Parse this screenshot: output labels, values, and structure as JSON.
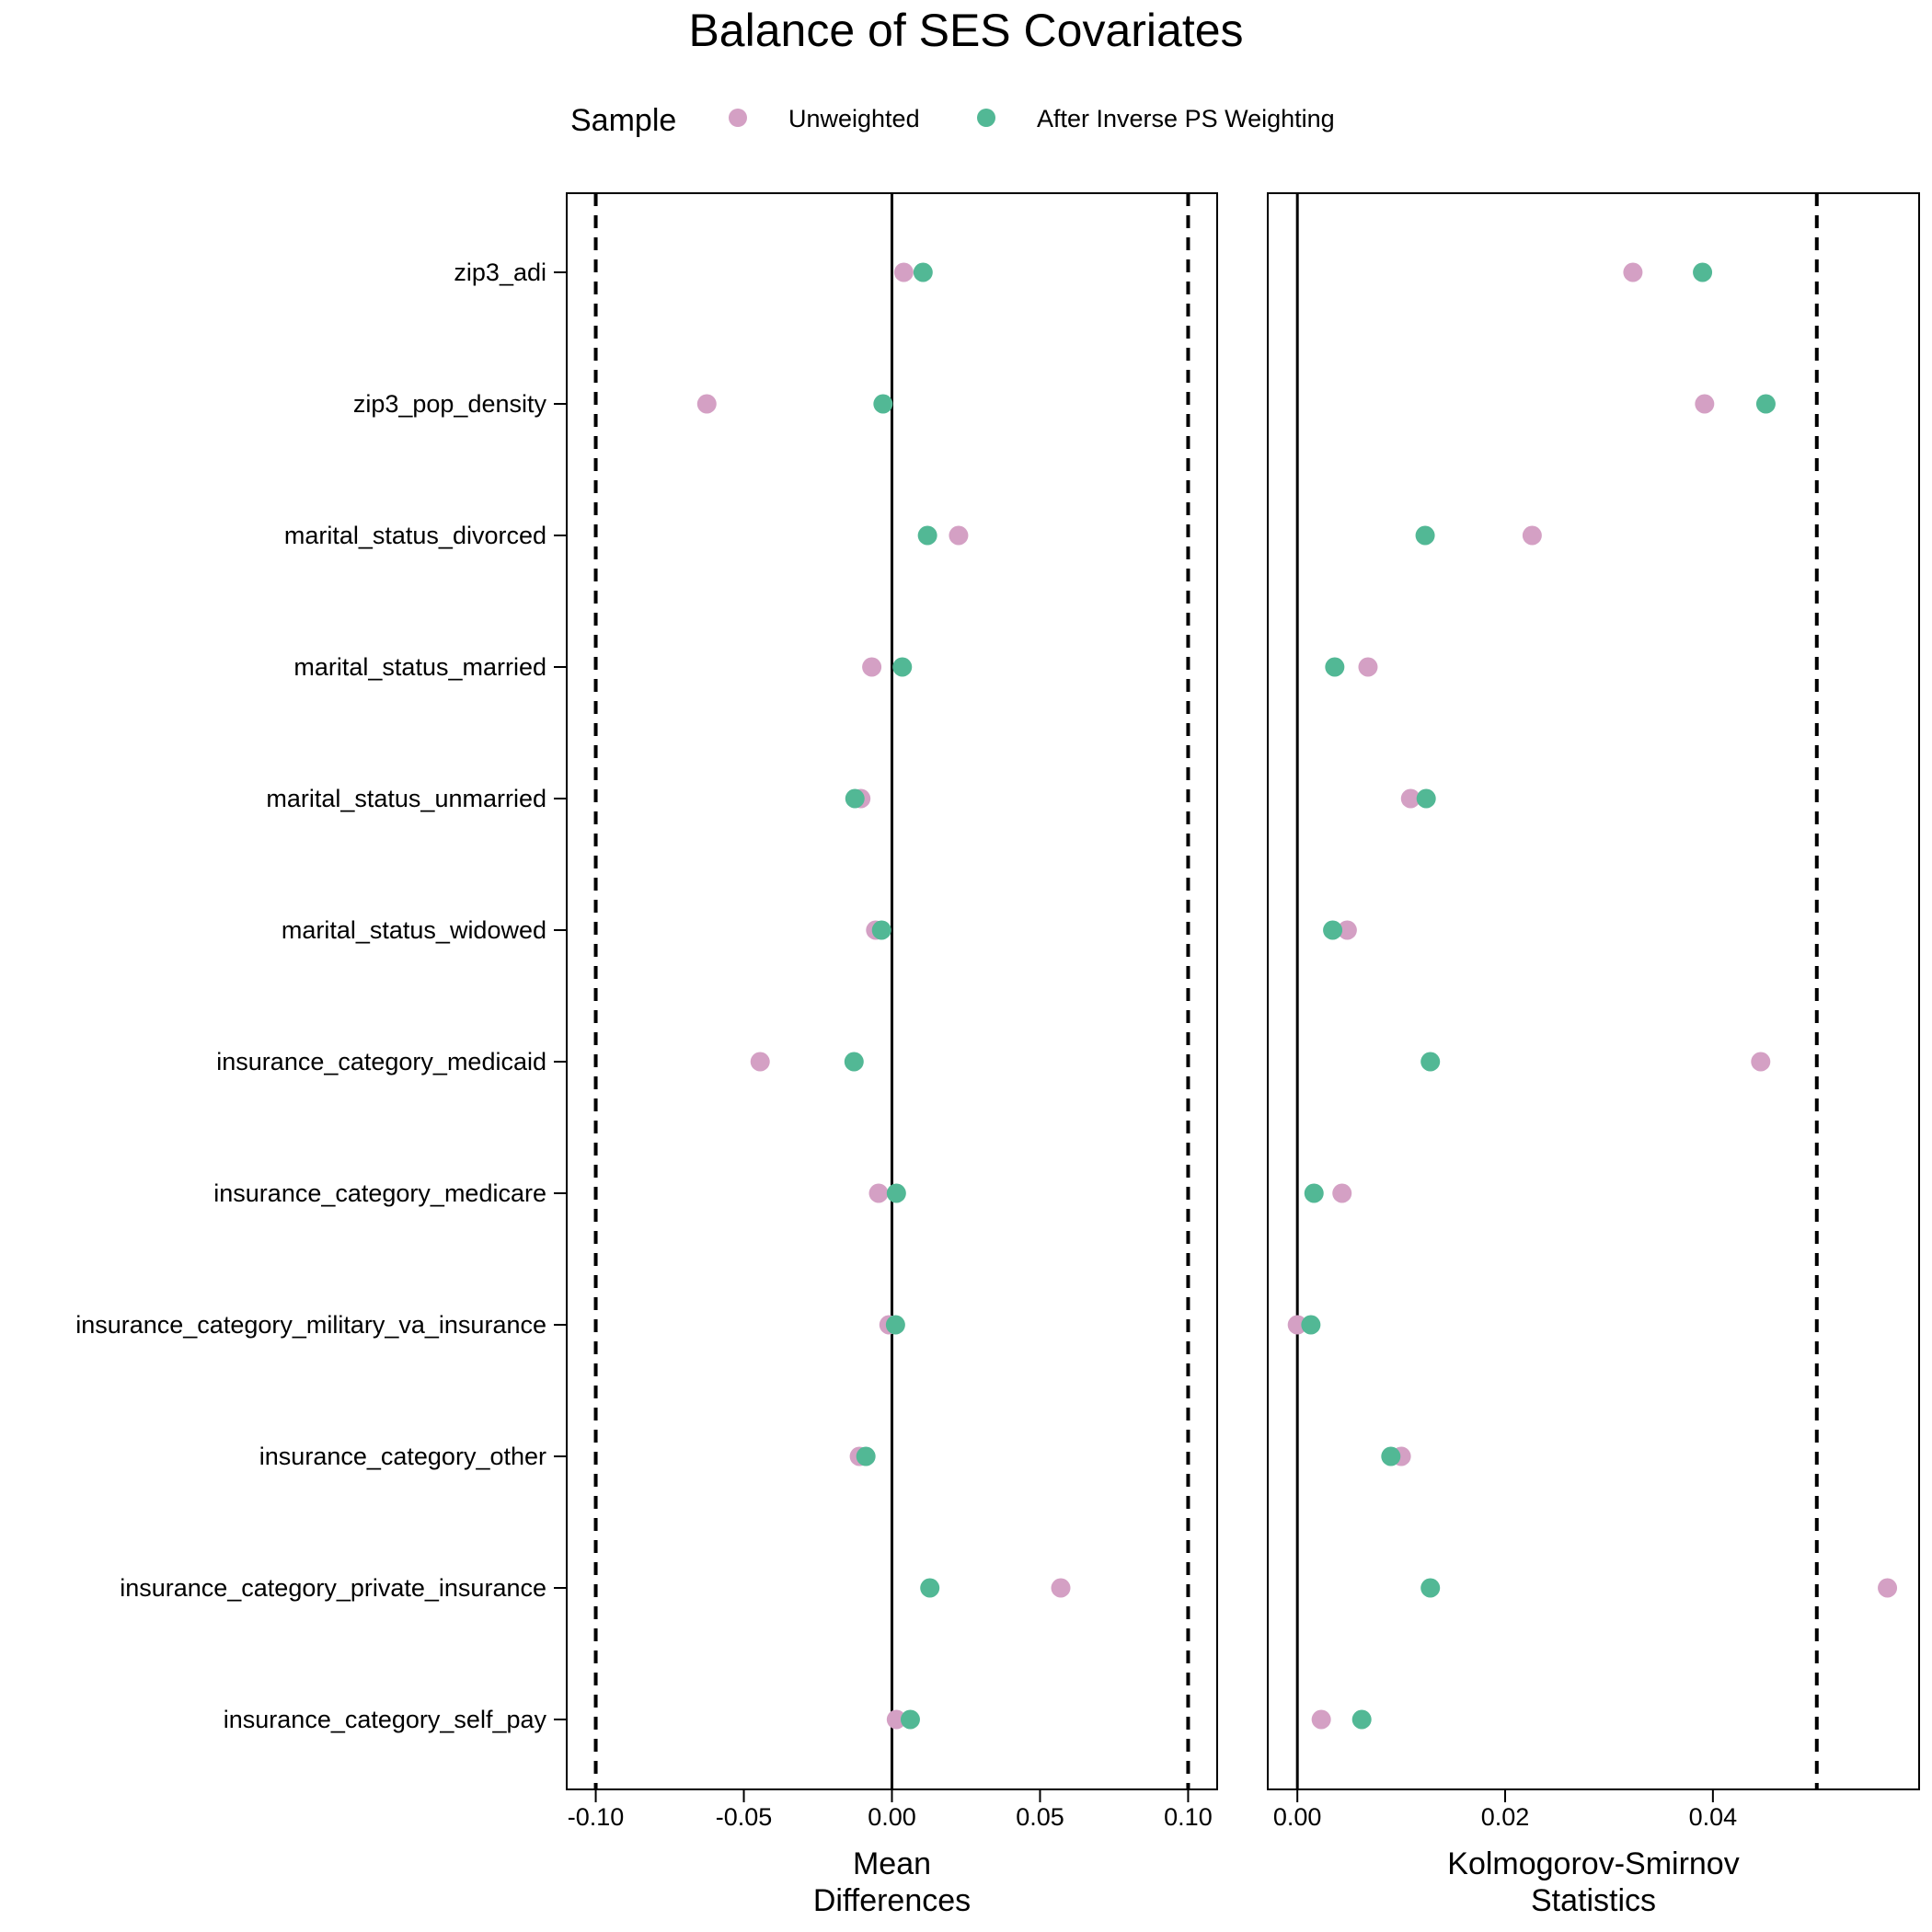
{
  "colors": {
    "unweighted": "#d4a0c4",
    "weighted": "#52b895",
    "axis": "#000000"
  },
  "chart_data": {
    "type": "scatter",
    "title": "Balance of SES Covariates",
    "legend": {
      "title": "Sample",
      "position": "top",
      "entries": [
        "Unweighted",
        "After Inverse PS Weighting"
      ]
    },
    "covariates": [
      "zip3_adi",
      "zip3_pop_density",
      "marital_status_divorced",
      "marital_status_married",
      "marital_status_unmarried",
      "marital_status_widowed",
      "insurance_category_medicaid",
      "insurance_category_medicare",
      "insurance_category_military_va_insurance",
      "insurance_category_other",
      "insurance_category_private_insurance",
      "insurance_category_self_pay"
    ],
    "panels": [
      {
        "id": "mean-diff",
        "xlabel_lines": [
          "Mean",
          "Differences"
        ],
        "xlim": [
          -0.1098,
          0.1098
        ],
        "ticks": [
          -0.1,
          -0.05,
          0.0,
          0.05,
          0.1
        ],
        "tick_labels": [
          "-0.10",
          "-0.05",
          "0.00",
          "0.05",
          "0.10"
        ],
        "zero_line": 0,
        "threshold_lines": [
          -0.1,
          0.1
        ],
        "series": [
          {
            "name": "Unweighted",
            "values": [
              0.004,
              -0.0625,
              0.0225,
              -0.0068,
              -0.0105,
              -0.0055,
              -0.0445,
              -0.0045,
              -0.001,
              -0.011,
              0.057,
              0.0015
            ]
          },
          {
            "name": "After Inverse PS Weighting",
            "values": [
              0.0105,
              -0.003,
              0.012,
              0.0035,
              -0.0125,
              -0.0035,
              -0.0128,
              0.0015,
              0.0012,
              -0.0088,
              0.0128,
              0.0062
            ]
          }
        ]
      },
      {
        "id": "ks",
        "xlabel_lines": [
          "Kolmogorov-Smirnov",
          "Statistics"
        ],
        "xlim": [
          -0.00285,
          0.05985
        ],
        "ticks": [
          0.0,
          0.02,
          0.04
        ],
        "tick_labels": [
          "0.00",
          "0.02",
          "0.04"
        ],
        "zero_line": 0,
        "threshold_lines": [
          0.05
        ],
        "series": [
          {
            "name": "Unweighted",
            "values": [
              0.0323,
              0.0392,
              0.0226,
              0.0068,
              0.0109,
              0.0048,
              0.0446,
              0.0043,
              0.0,
              0.01,
              0.0568,
              0.0023
            ]
          },
          {
            "name": "After Inverse PS Weighting",
            "values": [
              0.039,
              0.0451,
              0.0123,
              0.0036,
              0.0124,
              0.0034,
              0.0128,
              0.0016,
              0.0013,
              0.009,
              0.0128,
              0.0062
            ]
          }
        ]
      }
    ]
  }
}
